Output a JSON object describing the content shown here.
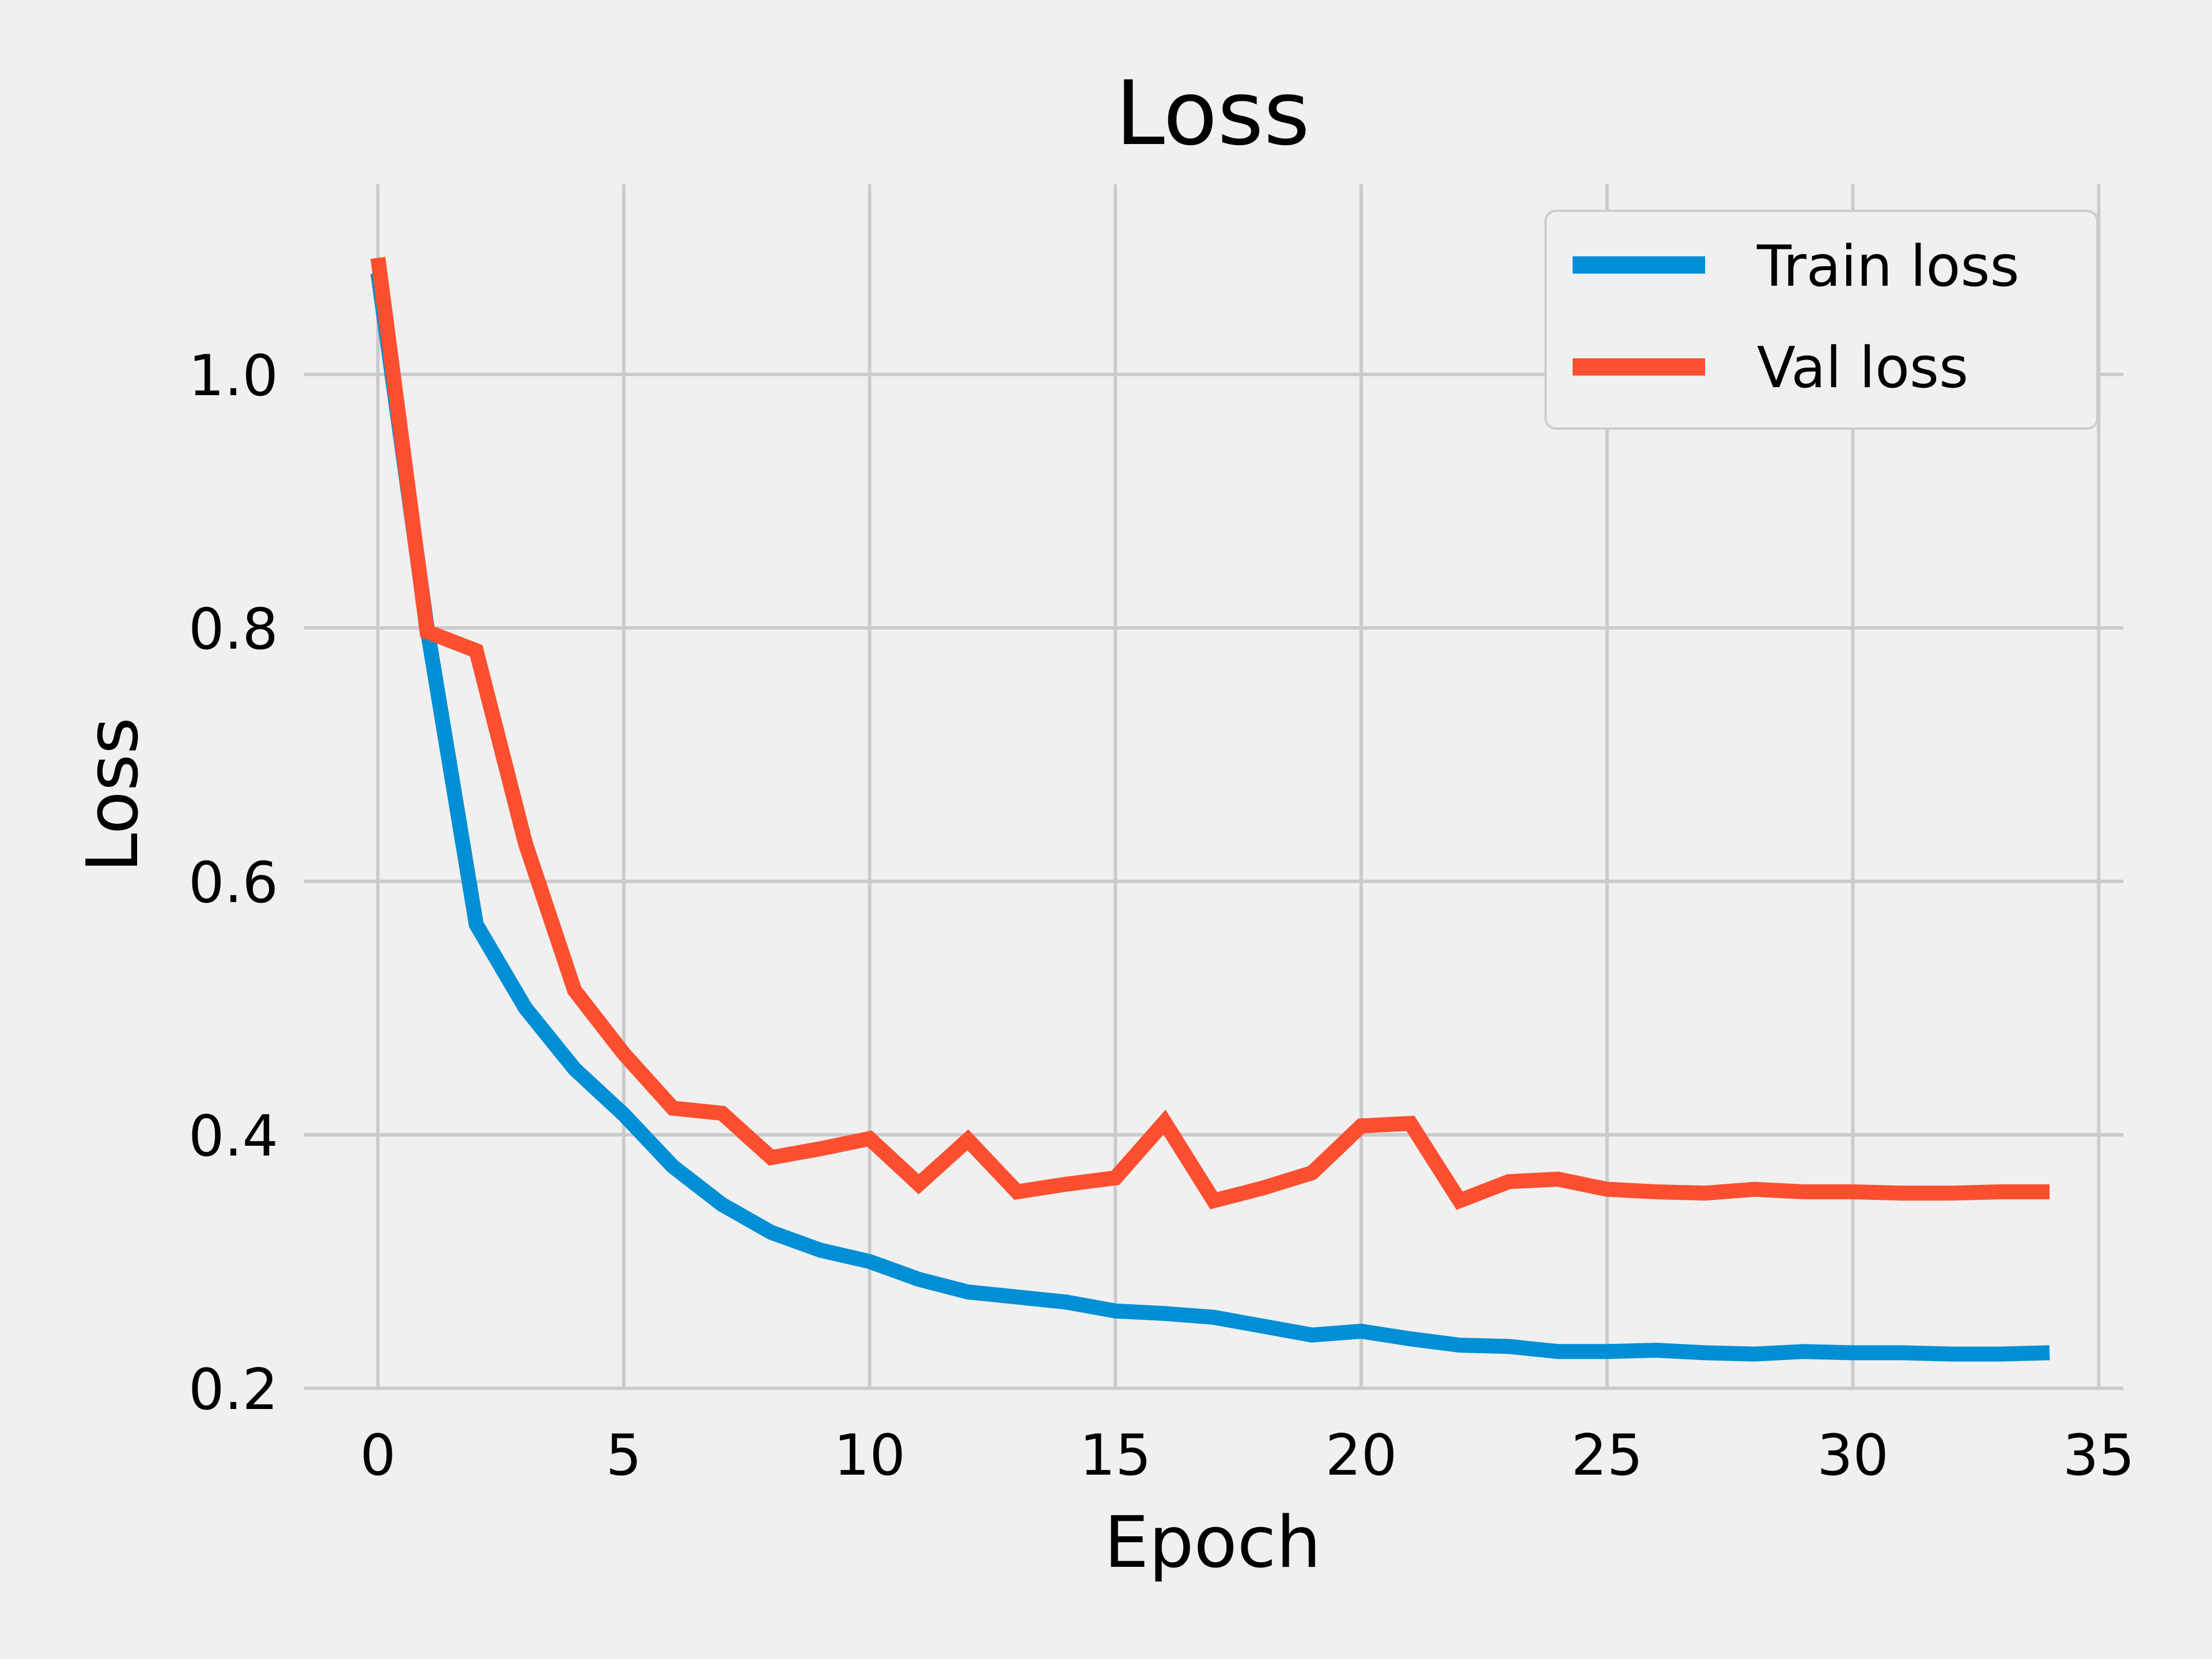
{
  "chart_data": {
    "type": "line",
    "title": "Loss",
    "xlabel": "Epoch",
    "ylabel": "Loss",
    "xlim": [
      -1.5,
      35.5
    ],
    "ylim": [
      0.2,
      1.15
    ],
    "xticks": [
      0,
      5,
      10,
      15,
      20,
      25,
      30,
      35
    ],
    "xtick_labels": [
      "0",
      "5",
      "10",
      "15",
      "20",
      "25",
      "30",
      "35"
    ],
    "yticks": [
      0.2,
      0.4,
      0.6,
      0.8,
      1.0
    ],
    "ytick_labels": [
      "0.2",
      "0.4",
      "0.6",
      "0.8",
      "1.0"
    ],
    "grid": true,
    "legend_position": "top-right",
    "x": [
      0,
      1,
      2,
      3,
      4,
      5,
      6,
      7,
      8,
      9,
      10,
      11,
      12,
      13,
      14,
      15,
      16,
      17,
      18,
      19,
      20,
      21,
      22,
      23,
      24,
      25,
      26,
      27,
      28,
      29,
      30,
      31,
      32,
      33,
      34
    ],
    "series": [
      {
        "name": "Train loss",
        "color": "#008fd5",
        "values": [
          1.08,
          0.8,
          0.566,
          0.5,
          0.452,
          0.416,
          0.375,
          0.345,
          0.323,
          0.309,
          0.3,
          0.286,
          0.276,
          0.272,
          0.268,
          0.261,
          0.259,
          0.256,
          0.249,
          0.242,
          0.245,
          0.239,
          0.234,
          0.233,
          0.229,
          0.229,
          0.23,
          0.228,
          0.227,
          0.229,
          0.228,
          0.228,
          0.227,
          0.227,
          0.228
        ]
      },
      {
        "name": "Val loss",
        "color": "#fc4f30",
        "values": [
          1.092,
          0.797,
          0.782,
          0.63,
          0.514,
          0.464,
          0.421,
          0.417,
          0.382,
          0.389,
          0.397,
          0.361,
          0.396,
          0.355,
          0.361,
          0.366,
          0.41,
          0.348,
          0.358,
          0.37,
          0.407,
          0.409,
          0.348,
          0.363,
          0.365,
          0.357,
          0.355,
          0.354,
          0.357,
          0.355,
          0.355,
          0.354,
          0.354,
          0.355,
          0.355
        ]
      }
    ]
  }
}
